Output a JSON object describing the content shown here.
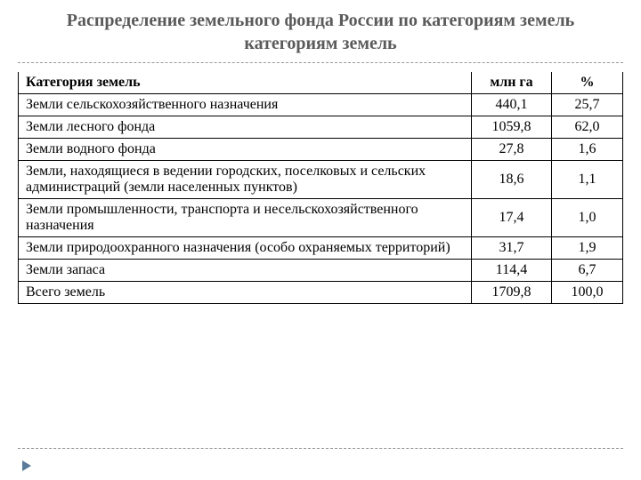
{
  "title": "Распределение земельного фонда России по категориям земель категориям земель",
  "table": {
    "type": "table",
    "columns": [
      {
        "label": "Категория земель",
        "align": "left"
      },
      {
        "label": "млн га",
        "align": "center"
      },
      {
        "label": "%",
        "align": "center"
      }
    ],
    "rows": [
      {
        "category": "Земли сельскохозяйственного назначения",
        "mln_ha": "440,1",
        "pct": "25,7"
      },
      {
        "category": "Земли лесного фонда",
        "mln_ha": "1059,8",
        "pct": "62,0"
      },
      {
        "category": "Земли водного фонда",
        "mln_ha": "27,8",
        "pct": "1,6"
      },
      {
        "category": "Земли, находящиеся в ведении городских, поселковых и сельских администраций (земли населенных пунктов)",
        "mln_ha": "18,6",
        "pct": "1,1"
      },
      {
        "category": "Земли промышленности, транспорта и несельскохозяйственного назначения",
        "mln_ha": "17,4",
        "pct": "1,0"
      },
      {
        "category": "Земли природоохранного назначения (особо охраняемых территорий)",
        "mln_ha": "31,7",
        "pct": "1,9"
      },
      {
        "category": "Земли запаса",
        "mln_ha": "114,4",
        "pct": "6,7"
      },
      {
        "category": "Всего земель",
        "mln_ha": "1709,8",
        "pct": "100,0"
      }
    ],
    "border_color": "#000000",
    "text_color": "#000000",
    "font_size": 16,
    "background_color": "#ffffff"
  },
  "title_style": {
    "color": "#5a5a5a",
    "font_size": 20,
    "font_weight": "bold"
  },
  "marker_color": "#5a7a9a",
  "divider_color": "#999999"
}
